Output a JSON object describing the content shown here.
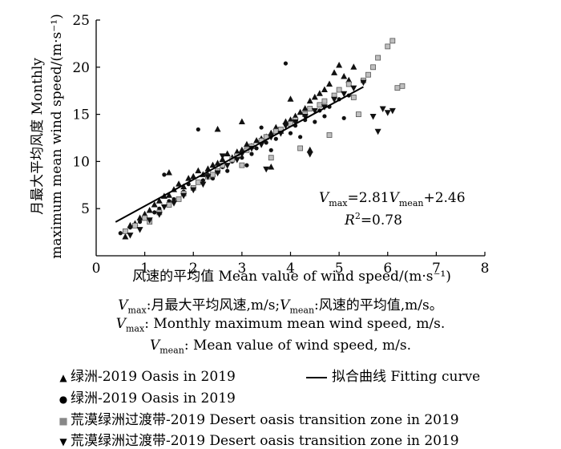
{
  "chart_data": {
    "type": "scatter",
    "title": "",
    "xlabel": "风速的平均值 Mean value of wind speed/(m·s⁻¹)",
    "ylabel_cn": "月最大平均风度 Monthly",
    "ylabel_en": "maximum mean wind speed/(m·s⁻¹)",
    "xlim": [
      0,
      8
    ],
    "ylim": [
      0,
      25
    ],
    "xticks": [
      "0",
      "1",
      "2",
      "3",
      "4",
      "5",
      "6",
      "7",
      "8"
    ],
    "yticks": [
      "5",
      "10",
      "15",
      "20",
      "25"
    ],
    "fit": {
      "slope": 2.81,
      "intercept": 2.46,
      "x_range": [
        0.4,
        5.5
      ],
      "r2": 0.78
    },
    "equation": {
      "v": "V",
      "max_sub": "max",
      "eq_mid": "=2.81",
      "v2": "V",
      "mean_sub": "mean",
      "eq_end": "+2.46",
      "r": "R",
      "r_sup": "2",
      "r_val": "=0.78"
    },
    "series": [
      {
        "name": "绿洲-2019 Oasis in 2019",
        "marker": "triangle-up",
        "x": [
          0.6,
          0.7,
          0.8,
          0.9,
          1.0,
          1.1,
          1.2,
          1.3,
          1.4,
          1.5,
          1.6,
          1.7,
          1.8,
          1.9,
          2.0,
          2.1,
          2.2,
          2.3,
          2.4,
          2.5,
          2.6,
          2.7,
          2.8,
          2.9,
          3.0,
          3.1,
          3.2,
          3.3,
          3.4,
          3.5,
          3.6,
          3.7,
          3.8,
          3.9,
          4.0,
          4.1,
          4.2,
          4.3,
          4.4,
          4.5,
          4.6,
          4.7,
          4.8,
          4.9,
          5.0,
          5.1,
          5.2,
          5.3,
          1.5,
          2.5,
          3.0,
          3.6,
          4.0,
          4.4
        ],
        "y": [
          2.0,
          3.2,
          3.4,
          4.0,
          4.4,
          4.8,
          5.4,
          5.8,
          6.3,
          6.4,
          7.0,
          7.6,
          7.3,
          8.2,
          8.4,
          9.0,
          8.6,
          9.2,
          9.6,
          9.8,
          10.2,
          10.8,
          10.4,
          11.0,
          11.2,
          11.8,
          11.6,
          12.2,
          12.4,
          12.6,
          13.0,
          13.6,
          13.2,
          14.2,
          14.4,
          14.8,
          15.2,
          15.6,
          16.4,
          16.8,
          17.2,
          17.6,
          18.2,
          19.4,
          20.2,
          19.0,
          18.6,
          20.0,
          8.8,
          13.4,
          14.2,
          9.4,
          16.6,
          11.2
        ]
      },
      {
        "name": "绿洲-2019 Oasis in 2019",
        "marker": "circle",
        "x": [
          0.5,
          0.7,
          0.9,
          1.0,
          1.2,
          1.3,
          1.5,
          1.6,
          1.8,
          1.9,
          2.0,
          2.2,
          2.3,
          2.4,
          2.6,
          2.7,
          2.8,
          3.0,
          3.1,
          3.2,
          3.3,
          3.5,
          3.6,
          3.7,
          3.8,
          4.0,
          4.1,
          4.2,
          4.3,
          4.5,
          4.6,
          4.7,
          4.8,
          5.0,
          5.1,
          5.2,
          3.9,
          2.1,
          1.4,
          3.4
        ],
        "y": [
          2.4,
          3.0,
          3.6,
          4.2,
          4.6,
          5.0,
          5.8,
          6.0,
          6.8,
          7.6,
          7.2,
          8.0,
          8.6,
          8.2,
          9.4,
          9.0,
          10.0,
          10.4,
          9.6,
          10.8,
          11.4,
          12.0,
          11.2,
          12.4,
          13.2,
          13.0,
          13.8,
          12.6,
          14.4,
          14.2,
          15.4,
          14.8,
          15.8,
          16.6,
          14.6,
          17.0,
          20.4,
          13.4,
          8.6,
          13.6
        ]
      },
      {
        "name": "荒漠绿洲过渡带-2019 Desert oasis transition zone in 2019",
        "marker": "square",
        "x": [
          0.6,
          0.8,
          1.0,
          1.1,
          1.3,
          1.5,
          1.7,
          1.8,
          2.0,
          2.1,
          2.3,
          2.5,
          2.6,
          2.8,
          2.9,
          3.1,
          3.2,
          3.4,
          3.5,
          3.7,
          3.8,
          4.0,
          4.1,
          4.3,
          4.4,
          4.6,
          4.7,
          4.9,
          5.0,
          5.2,
          5.3,
          5.5,
          5.6,
          5.7,
          5.8,
          6.0,
          6.1,
          6.2,
          6.3,
          5.4,
          4.8,
          4.2,
          3.6,
          3.0,
          2.4
        ],
        "y": [
          2.6,
          3.2,
          4.0,
          3.6,
          4.6,
          5.4,
          6.0,
          6.6,
          7.2,
          7.8,
          8.4,
          9.0,
          9.6,
          10.2,
          10.6,
          11.2,
          11.6,
          12.2,
          12.6,
          13.2,
          13.4,
          14.0,
          14.4,
          15.0,
          15.6,
          16.0,
          16.4,
          17.0,
          17.6,
          18.2,
          16.8,
          18.6,
          19.2,
          20.0,
          21.0,
          22.2,
          22.8,
          17.8,
          18.0,
          15.0,
          12.8,
          11.4,
          10.4,
          9.6,
          8.6
        ]
      },
      {
        "name": "荒漠绿洲过渡带-2019 Desert oasis transition zone in 2019",
        "marker": "triangle-down",
        "x": [
          0.7,
          0.9,
          1.1,
          1.3,
          1.4,
          1.6,
          1.8,
          2.0,
          2.2,
          2.3,
          2.5,
          2.7,
          2.9,
          3.0,
          3.2,
          3.4,
          3.6,
          3.8,
          3.9,
          4.1,
          4.3,
          4.5,
          4.7,
          4.9,
          5.1,
          5.3,
          5.5,
          5.7,
          5.9,
          6.0,
          6.1,
          4.4,
          3.5,
          2.6,
          5.8
        ],
        "y": [
          2.2,
          2.8,
          3.8,
          4.4,
          5.2,
          5.6,
          6.4,
          7.0,
          7.6,
          8.4,
          8.8,
          9.6,
          10.2,
          10.8,
          11.4,
          11.8,
          12.6,
          13.0,
          13.8,
          14.2,
          14.8,
          15.4,
          15.8,
          16.6,
          17.2,
          17.8,
          18.4,
          14.8,
          15.6,
          15.2,
          15.4,
          10.8,
          9.2,
          10.6,
          13.2
        ]
      }
    ]
  },
  "caption": {
    "line1": {
      "v": "V",
      "sub1": "max",
      "t1": ":月最大平均风速,m/s;",
      "v2": "V",
      "sub2": "mean",
      "t2": ":风速的平均值,m/s。"
    },
    "line2": {
      "v": "V",
      "sub": "max",
      "t": ": Monthly maximum mean wind speed, m/s."
    },
    "line3": {
      "v": "V",
      "sub": "mean",
      "t": ": Mean value of wind speed, m/s."
    }
  },
  "legend": {
    "items": [
      {
        "symbol": "▲",
        "label": "绿洲-2019 Oasis in 2019"
      },
      {
        "symbol": "●",
        "label": "绿洲-2019 Oasis in 2019"
      },
      {
        "symbol": "■",
        "label": "荒漠绿洲过渡带-2019 Desert oasis transition zone in 2019"
      },
      {
        "symbol": "▼",
        "label": "荒漠绿洲过渡带-2019 Desert oasis transition zone in 2019"
      }
    ],
    "fit_label": "拟合曲线 Fitting curve"
  },
  "colors": {
    "axis": "#000000",
    "marker": "#111111",
    "square_fill": "#bfbfbf"
  }
}
